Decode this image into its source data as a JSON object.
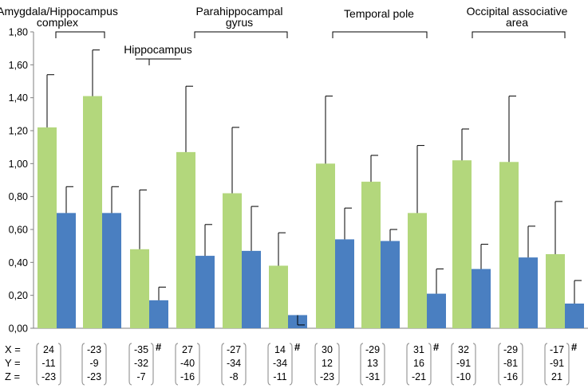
{
  "chart_data": {
    "type": "bar",
    "ylim": [
      0,
      1.8
    ],
    "yticks": [
      "0,00",
      "0,20",
      "0,40",
      "0,60",
      "0,80",
      "1,00",
      "1,20",
      "1,40",
      "1,60",
      "1,80"
    ],
    "series": [
      {
        "name": "green",
        "color": "#b3d77c"
      },
      {
        "name": "blue",
        "color": "#4a7fc1"
      }
    ],
    "pairs": [
      {
        "green": 1.22,
        "green_err": 0.32,
        "blue": 0.7,
        "blue_err": 0.16
      },
      {
        "green": 1.41,
        "green_err": 0.28,
        "blue": 0.7,
        "blue_err": 0.16
      },
      {
        "green": 0.48,
        "green_err": 0.36,
        "blue": 0.17,
        "blue_err": 0.08
      },
      {
        "green": 1.07,
        "green_err": 0.4,
        "blue": 0.44,
        "blue_err": 0.19
      },
      {
        "green": 0.82,
        "green_err": 0.4,
        "blue": 0.47,
        "blue_err": 0.27
      },
      {
        "green": 0.38,
        "green_err": 0.2,
        "blue": 0.08,
        "blue_err": -0.06
      },
      {
        "green": 1.0,
        "green_err": 0.41,
        "blue": 0.54,
        "blue_err": 0.19
      },
      {
        "green": 0.89,
        "green_err": 0.16,
        "blue": 0.53,
        "blue_err": 0.07
      },
      {
        "green": 0.7,
        "green_err": 0.41,
        "blue": 0.21,
        "blue_err": 0.15
      },
      {
        "green": 1.02,
        "green_err": 0.19,
        "blue": 0.36,
        "blue_err": 0.15
      },
      {
        "green": 1.01,
        "green_err": 0.4,
        "blue": 0.43,
        "blue_err": 0.19
      },
      {
        "green": 0.45,
        "green_err": 0.32,
        "blue": 0.15,
        "blue_err": 0.14
      }
    ],
    "groups": [
      {
        "lines": [
          "Amygdala/Hippocampus",
          "complex"
        ],
        "pairs": [
          0,
          1
        ]
      },
      {
        "lines": [
          "Hippocampus"
        ],
        "pairs": [
          2,
          2
        ]
      },
      {
        "lines": [
          "Parahippocampal",
          "gyrus"
        ],
        "pairs": [
          3,
          5
        ]
      },
      {
        "lines": [
          "Temporal pole"
        ],
        "pairs": [
          6,
          8
        ]
      },
      {
        "lines": [
          "Occipital associative",
          "area"
        ],
        "pairs": [
          9,
          11
        ]
      }
    ],
    "coord_labels": [
      "X =",
      "Y =",
      "Z ="
    ],
    "coordinates": [
      [
        "24",
        "-11",
        "-23"
      ],
      [
        "-23",
        "-9",
        "-23"
      ],
      [
        "-35",
        "-32",
        "-7"
      ],
      [
        "27",
        "-40",
        "-16"
      ],
      [
        "-27",
        "-34",
        "-8"
      ],
      [
        "14",
        "-34",
        "-11"
      ],
      [
        "30",
        "12",
        "-23"
      ],
      [
        "-29",
        "13",
        "-31"
      ],
      [
        "31",
        "16",
        "-21"
      ],
      [
        "32",
        "-91",
        "-10"
      ],
      [
        "-29",
        "-81",
        "-16"
      ],
      [
        "-17",
        "-91",
        "21"
      ]
    ],
    "marks": [
      {
        "pair": 2,
        "symbol": "#"
      },
      {
        "pair": 5,
        "symbol": "#"
      },
      {
        "pair": 8,
        "symbol": "#"
      },
      {
        "pair": 11,
        "symbol": "#"
      }
    ]
  }
}
